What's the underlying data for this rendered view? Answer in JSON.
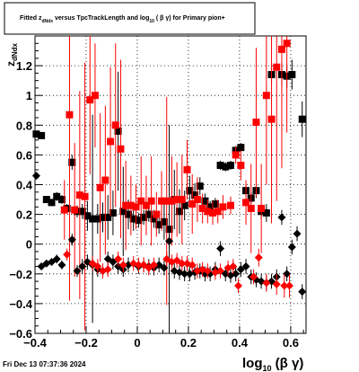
{
  "title": {
    "prefix": "Fitted  z",
    "sub1": "dNdx",
    "middle": " versus TpcTrackLength and log",
    "sub2": "10",
    "suffix": " ( β γ) for Primary pion+"
  },
  "footer": "Fri Dec 13 07:37:36 2024",
  "chart_data": {
    "type": "scatter",
    "title": "Fitted z_dNdx versus TpcTrackLength and log10(β γ) for Primary pion+",
    "xlabel": "log10(β γ)",
    "ylabel": "z_dNdx",
    "xlim": [
      -0.4,
      0.66
    ],
    "ylim": [
      -0.6,
      1.4
    ],
    "grid": true,
    "x_ticks": [
      "−0.4",
      "−0.2",
      "0",
      "0.2",
      "0.4",
      "0.6"
    ],
    "y_ticks": [
      "−0.6",
      "−0.4",
      "−0.2",
      "0",
      "0.2",
      "0.4",
      "0.6",
      "0.8",
      "1",
      "1.2"
    ],
    "series": [
      {
        "marker": "square",
        "color": "#000000",
        "points": [
          {
            "x": -0.395,
            "y": 0.74,
            "err": 0.02
          },
          {
            "x": -0.375,
            "y": 0.73,
            "err": 0.02
          },
          {
            "x": -0.355,
            "y": 0.3,
            "err": 0.02
          },
          {
            "x": -0.335,
            "y": 0.28,
            "err": 0.02
          },
          {
            "x": -0.315,
            "y": 0.32,
            "err": 0.03
          },
          {
            "x": -0.295,
            "y": 0.3,
            "err": 0.03
          },
          {
            "x": -0.275,
            "y": 0.24,
            "err": 0.03
          },
          {
            "x": -0.255,
            "y": 0.55,
            "err": 0.05
          },
          {
            "x": -0.235,
            "y": 0.22,
            "err": 0.04
          },
          {
            "x": -0.215,
            "y": 0.22,
            "err": 0.05
          },
          {
            "x": -0.195,
            "y": 0.19,
            "err": 0.1
          },
          {
            "x": -0.175,
            "y": 0.17,
            "err": 0.7
          },
          {
            "x": -0.155,
            "y": 0.17,
            "err": 0.1
          },
          {
            "x": -0.135,
            "y": 0.18,
            "err": 0.1
          },
          {
            "x": -0.115,
            "y": 0.18,
            "err": 0.15
          },
          {
            "x": -0.095,
            "y": 0.21,
            "err": 0.15
          },
          {
            "x": -0.075,
            "y": 0.76,
            "err": 0.4
          },
          {
            "x": -0.055,
            "y": 0.22,
            "err": 0.3
          },
          {
            "x": -0.035,
            "y": 0.2,
            "err": 0.1
          },
          {
            "x": -0.015,
            "y": 0.17,
            "err": 0.08
          },
          {
            "x": 0.005,
            "y": 0.16,
            "err": 0.05
          },
          {
            "x": 0.025,
            "y": 0.18,
            "err": 0.05
          },
          {
            "x": 0.045,
            "y": 0.2,
            "err": 0.05
          },
          {
            "x": 0.065,
            "y": 0.17,
            "err": 0.06
          },
          {
            "x": 0.085,
            "y": 0.13,
            "err": 0.06
          },
          {
            "x": 0.105,
            "y": 0.15,
            "err": 0.12
          },
          {
            "x": 0.125,
            "y": 0.1,
            "err": 0.7
          },
          {
            "x": 0.145,
            "y": 0.3,
            "err": 0.2
          },
          {
            "x": 0.165,
            "y": 0.22,
            "err": 0.15
          },
          {
            "x": 0.185,
            "y": 0.26,
            "err": 0.1
          },
          {
            "x": 0.205,
            "y": 0.36,
            "err": 0.1
          },
          {
            "x": 0.225,
            "y": 0.33,
            "err": 0.08
          },
          {
            "x": 0.245,
            "y": 0.39,
            "err": 0.06
          },
          {
            "x": 0.265,
            "y": 0.29,
            "err": 0.05
          },
          {
            "x": 0.285,
            "y": 0.25,
            "err": 0.04
          },
          {
            "x": 0.305,
            "y": 0.27,
            "err": 0.04
          },
          {
            "x": 0.325,
            "y": 0.53,
            "err": 0.03
          },
          {
            "x": 0.345,
            "y": 0.52,
            "err": 0.03
          },
          {
            "x": 0.365,
            "y": 0.53,
            "err": 0.03
          },
          {
            "x": 0.385,
            "y": 0.63,
            "err": 0.03
          },
          {
            "x": 0.405,
            "y": 0.65,
            "err": 0.03
          },
          {
            "x": 0.425,
            "y": 0.36,
            "err": 0.04
          },
          {
            "x": 0.445,
            "y": 0.31,
            "err": 0.04
          },
          {
            "x": 0.465,
            "y": 0.36,
            "err": 0.05
          },
          {
            "x": 0.485,
            "y": 0.22,
            "err": 0.05
          },
          {
            "x": 0.505,
            "y": 0.21,
            "err": 0.06
          },
          {
            "x": 0.525,
            "y": 1.14,
            "err": 0.06
          },
          {
            "x": 0.565,
            "y": 1.14,
            "err": 0.08
          },
          {
            "x": 0.585,
            "y": 1.13,
            "err": 0.08
          },
          {
            "x": 0.605,
            "y": 1.14,
            "err": 0.1
          },
          {
            "x": 0.645,
            "y": 0.84,
            "err": 0.12
          }
        ]
      },
      {
        "marker": "square",
        "color": "#ff0000",
        "points": [
          {
            "x": -0.285,
            "y": 0.23,
            "err": 0.2
          },
          {
            "x": -0.265,
            "y": 0.87,
            "err": 1.25
          },
          {
            "x": -0.245,
            "y": 0.23,
            "err": 0.45
          },
          {
            "x": -0.225,
            "y": 0.33,
            "err": 0.7
          },
          {
            "x": -0.205,
            "y": 0.32,
            "err": 0.9
          },
          {
            "x": -0.185,
            "y": 0.97,
            "err": 0.5
          },
          {
            "x": -0.165,
            "y": 1.0,
            "err": 0.35
          },
          {
            "x": -0.145,
            "y": 0.38,
            "err": 0.5
          },
          {
            "x": -0.125,
            "y": 0.43,
            "err": 0.5
          },
          {
            "x": -0.105,
            "y": 0.69,
            "err": 0.5
          },
          {
            "x": -0.085,
            "y": 0.8,
            "err": 0.55
          },
          {
            "x": -0.065,
            "y": 0.64,
            "err": 0.6
          },
          {
            "x": -0.045,
            "y": 0.26,
            "err": 0.3
          },
          {
            "x": -0.025,
            "y": 0.26,
            "err": 0.2
          },
          {
            "x": -0.005,
            "y": 0.25,
            "err": 0.15
          },
          {
            "x": 0.015,
            "y": 0.29,
            "err": 0.3
          },
          {
            "x": 0.035,
            "y": 0.26,
            "err": 0.2
          },
          {
            "x": 0.055,
            "y": 0.29,
            "err": 0.3
          },
          {
            "x": 0.075,
            "y": 0.2,
            "err": 0.15
          },
          {
            "x": 0.095,
            "y": 0.29,
            "err": 0.2
          },
          {
            "x": 0.115,
            "y": 0.29,
            "err": 0.7
          },
          {
            "x": 0.135,
            "y": 0.29,
            "err": 0.3
          },
          {
            "x": 0.155,
            "y": 0.3,
            "err": 0.25
          },
          {
            "x": 0.175,
            "y": 0.3,
            "err": 0.3
          },
          {
            "x": 0.195,
            "y": 0.5,
            "err": 0.2
          },
          {
            "x": 0.215,
            "y": 0.27,
            "err": 0.2
          },
          {
            "x": 0.235,
            "y": 0.3,
            "err": 0.15
          },
          {
            "x": 0.255,
            "y": 0.24,
            "err": 0.1
          },
          {
            "x": 0.275,
            "y": 0.22,
            "err": 0.08
          },
          {
            "x": 0.295,
            "y": 0.21,
            "err": 0.08
          },
          {
            "x": 0.315,
            "y": 0.22,
            "err": 0.08
          },
          {
            "x": 0.335,
            "y": 0.25,
            "err": 0.08
          },
          {
            "x": 0.365,
            "y": 0.26,
            "err": 0.06
          },
          {
            "x": 0.385,
            "y": 0.6,
            "err": 0.06
          },
          {
            "x": 0.405,
            "y": 0.53,
            "err": 0.1
          },
          {
            "x": 0.425,
            "y": 0.28,
            "err": 0.15
          },
          {
            "x": 0.445,
            "y": 0.24,
            "err": 0.3
          },
          {
            "x": 0.465,
            "y": 0.82,
            "err": 0.5
          },
          {
            "x": 0.485,
            "y": 0.24,
            "err": 0.3
          },
          {
            "x": 0.505,
            "y": 1.0,
            "err": 0.6
          },
          {
            "x": 0.525,
            "y": 0.84,
            "err": 0.7
          },
          {
            "x": 0.545,
            "y": 1.19,
            "err": 0.9
          },
          {
            "x": 0.565,
            "y": 1.31,
            "err": 0.8
          },
          {
            "x": 0.585,
            "y": 1.35,
            "err": 0.6
          }
        ]
      },
      {
        "marker": "diamond",
        "color": "#000000",
        "points": [
          {
            "x": -0.395,
            "y": 0.46,
            "err": 0.02
          },
          {
            "x": -0.375,
            "y": -0.15,
            "err": 0.02
          },
          {
            "x": -0.355,
            "y": -0.13,
            "err": 0.02
          },
          {
            "x": -0.335,
            "y": -0.12,
            "err": 0.02
          },
          {
            "x": -0.315,
            "y": -0.1,
            "err": 0.03
          },
          {
            "x": -0.295,
            "y": -0.14,
            "err": 0.03
          },
          {
            "x": -0.255,
            "y": 0.03,
            "err": 0.04
          },
          {
            "x": -0.235,
            "y": -0.18,
            "err": 0.04
          },
          {
            "x": -0.215,
            "y": -0.15,
            "err": 0.05
          },
          {
            "x": -0.195,
            "y": -0.12,
            "err": 0.05
          },
          {
            "x": -0.175,
            "y": -0.14,
            "err": 0.05
          },
          {
            "x": -0.155,
            "y": -0.17,
            "err": 0.05
          },
          {
            "x": -0.135,
            "y": -0.18,
            "err": 0.05
          },
          {
            "x": -0.115,
            "y": -0.1,
            "err": 0.05
          },
          {
            "x": -0.095,
            "y": -0.12,
            "err": 0.05
          },
          {
            "x": -0.075,
            "y": -0.15,
            "err": 0.05
          },
          {
            "x": -0.055,
            "y": -0.17,
            "err": 0.05
          },
          {
            "x": -0.035,
            "y": -0.14,
            "err": 0.05
          },
          {
            "x": 0.005,
            "y": -0.15,
            "err": 0.05
          },
          {
            "x": 0.025,
            "y": -0.14,
            "err": 0.05
          },
          {
            "x": 0.045,
            "y": -0.15,
            "err": 0.05
          },
          {
            "x": 0.065,
            "y": -0.16,
            "err": 0.05
          },
          {
            "x": 0.085,
            "y": -0.14,
            "err": 0.05
          },
          {
            "x": 0.105,
            "y": -0.16,
            "err": 0.05
          },
          {
            "x": 0.125,
            "y": 0.02,
            "err": 0.05
          },
          {
            "x": 0.145,
            "y": -0.18,
            "err": 0.05
          },
          {
            "x": 0.165,
            "y": -0.19,
            "err": 0.05
          },
          {
            "x": 0.185,
            "y": -0.2,
            "err": 0.05
          },
          {
            "x": 0.205,
            "y": -0.2,
            "err": 0.05
          },
          {
            "x": 0.225,
            "y": -0.19,
            "err": 0.05
          },
          {
            "x": 0.245,
            "y": -0.18,
            "err": 0.05
          },
          {
            "x": 0.265,
            "y": -0.2,
            "err": 0.05
          },
          {
            "x": 0.285,
            "y": -0.2,
            "err": 0.05
          },
          {
            "x": 0.305,
            "y": -0.17,
            "err": 0.05
          },
          {
            "x": 0.325,
            "y": -0.03,
            "err": 0.05
          },
          {
            "x": 0.345,
            "y": -0.2,
            "err": 0.05
          },
          {
            "x": 0.365,
            "y": -0.21,
            "err": 0.05
          },
          {
            "x": 0.385,
            "y": -0.2,
            "err": 0.05
          },
          {
            "x": 0.405,
            "y": -0.17,
            "err": 0.05
          },
          {
            "x": 0.425,
            "y": -0.15,
            "err": 0.05
          },
          {
            "x": 0.445,
            "y": -0.22,
            "err": 0.05
          },
          {
            "x": 0.465,
            "y": -0.24,
            "err": 0.05
          },
          {
            "x": 0.485,
            "y": -0.25,
            "err": 0.05
          },
          {
            "x": 0.505,
            "y": -0.26,
            "err": 0.05
          },
          {
            "x": 0.525,
            "y": -0.25,
            "err": 0.05
          },
          {
            "x": 0.545,
            "y": -0.22,
            "err": 0.05
          },
          {
            "x": 0.565,
            "y": 0.18,
            "err": 0.05
          },
          {
            "x": 0.585,
            "y": -0.2,
            "err": 0.05
          },
          {
            "x": 0.605,
            "y": -0.02,
            "err": 0.05
          },
          {
            "x": 0.625,
            "y": 0.07,
            "err": 0.05
          },
          {
            "x": 0.645,
            "y": -0.32,
            "err": 0.05
          }
        ]
      },
      {
        "marker": "diamond",
        "color": "#ff0000",
        "points": [
          {
            "x": -0.275,
            "y": -0.07,
            "err": 0.04
          },
          {
            "x": -0.175,
            "y": -0.13,
            "err": 0.05
          },
          {
            "x": -0.155,
            "y": -0.15,
            "err": 0.05
          },
          {
            "x": -0.135,
            "y": -0.18,
            "err": 0.05
          },
          {
            "x": -0.115,
            "y": -0.17,
            "err": 0.05
          },
          {
            "x": -0.075,
            "y": -0.1,
            "err": 0.05
          },
          {
            "x": -0.055,
            "y": -0.14,
            "err": 0.05
          },
          {
            "x": -0.015,
            "y": -0.13,
            "err": 0.05
          },
          {
            "x": 0.005,
            "y": -0.14,
            "err": 0.05
          },
          {
            "x": 0.025,
            "y": -0.14,
            "err": 0.05
          },
          {
            "x": 0.045,
            "y": -0.16,
            "err": 0.05
          },
          {
            "x": 0.065,
            "y": -0.14,
            "err": 0.05
          },
          {
            "x": 0.115,
            "y": -0.1,
            "err": 0.05
          },
          {
            "x": 0.135,
            "y": -0.12,
            "err": 0.05
          },
          {
            "x": 0.155,
            "y": -0.11,
            "err": 0.05
          },
          {
            "x": 0.175,
            "y": -0.13,
            "err": 0.05
          },
          {
            "x": 0.195,
            "y": -0.13,
            "err": 0.05
          },
          {
            "x": 0.215,
            "y": -0.14,
            "err": 0.05
          },
          {
            "x": 0.235,
            "y": -0.18,
            "err": 0.05
          },
          {
            "x": 0.255,
            "y": -0.17,
            "err": 0.05
          },
          {
            "x": 0.275,
            "y": -0.18,
            "err": 0.05
          },
          {
            "x": 0.305,
            "y": -0.19,
            "err": 0.05
          },
          {
            "x": 0.325,
            "y": -0.18,
            "err": 0.05
          },
          {
            "x": 0.355,
            "y": -0.16,
            "err": 0.05
          },
          {
            "x": 0.375,
            "y": -0.15,
            "err": 0.05
          },
          {
            "x": 0.395,
            "y": -0.28,
            "err": 0.05
          },
          {
            "x": 0.455,
            "y": -0.22,
            "err": 0.05
          },
          {
            "x": 0.475,
            "y": -0.09,
            "err": 0.06
          },
          {
            "x": 0.505,
            "y": -0.26,
            "err": 0.06
          },
          {
            "x": 0.545,
            "y": -0.27,
            "err": 0.07
          },
          {
            "x": 0.575,
            "y": -0.28,
            "err": 0.08
          },
          {
            "x": 0.595,
            "y": -0.28,
            "err": 0.08
          }
        ]
      }
    ]
  }
}
